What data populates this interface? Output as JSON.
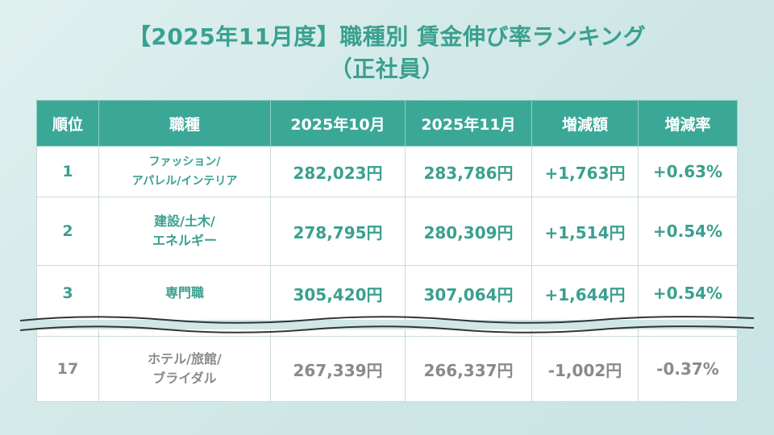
{
  "title": {
    "line1": "【2025年11月度】職種別 賃金伸び率ランキング",
    "line2": "（正社員）"
  },
  "table": {
    "headers": [
      "順位",
      "職種",
      "2025年10月",
      "2025年11月",
      "増減額",
      "増減率"
    ],
    "rows": [
      {
        "rank": "1",
        "job_line1": "ファッション/",
        "job_line2": "アパレル/インテリア",
        "oct": "282,023円",
        "nov": "283,786円",
        "diff": "+1,763円",
        "rate": "+0.63%"
      },
      {
        "rank": "2",
        "job_line1": "建設/土木/",
        "job_line2": "エネルギー",
        "oct": "278,795円",
        "nov": "280,309円",
        "diff": "+1,514円",
        "rate": "+0.54%"
      },
      {
        "rank": "3",
        "job_line1": "専門職",
        "job_line2": "",
        "oct": "305,420円",
        "nov": "307,064円",
        "diff": "+1,644円",
        "rate": "+0.54%"
      },
      {
        "rank": "17",
        "job_line1": "ホテル/旅館/",
        "job_line2": "ブライダル",
        "oct": "267,339円",
        "nov": "266,337円",
        "diff": "-1,002円",
        "rate": "-0.37%"
      }
    ]
  },
  "colors": {
    "accent": "#3ba897",
    "text_accent": "#3aa08f",
    "muted": "#8a8a8a"
  }
}
